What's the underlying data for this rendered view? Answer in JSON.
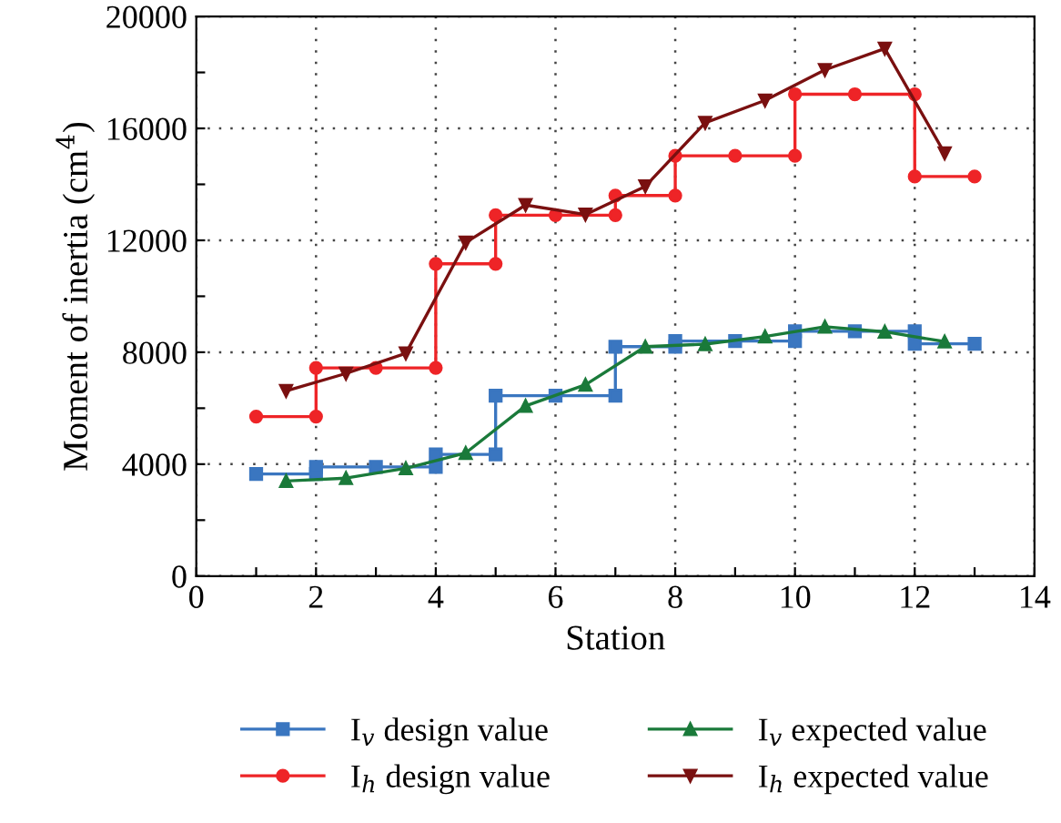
{
  "chart_data": {
    "type": "line",
    "xlabel": "Station",
    "ylabel": "Moment of inertia (cm$^{4}$)",
    "xlim": [
      0,
      14
    ],
    "ylim": [
      0,
      20000
    ],
    "xticks": [
      0,
      {
        "value": 1,
        "label": null
      },
      2,
      {
        "value": 3,
        "label": null
      },
      4,
      {
        "value": 5,
        "label": null
      },
      6,
      {
        "value": 7,
        "label": null
      },
      8,
      {
        "value": 9,
        "label": null
      },
      10,
      {
        "value": 11,
        "label": null
      },
      12,
      {
        "value": 13,
        "label": null
      },
      14
    ],
    "yticks": [
      0,
      {
        "value": 2000,
        "label": null
      },
      4000,
      {
        "value": 6000,
        "label": null
      },
      8000,
      {
        "value": 10000,
        "label": null
      },
      12000,
      {
        "value": 14000,
        "label": null
      },
      16000,
      {
        "value": 18000,
        "label": null
      },
      20000
    ],
    "grid": true,
    "legend": "bottom",
    "line_style": "solid",
    "series": [
      {
        "name": "I$_{v}$ design value",
        "color": "#3a76c0",
        "marker": "square",
        "x": [
          1,
          2,
          2,
          3,
          4,
          4,
          5,
          5,
          6,
          7,
          7,
          8,
          8,
          9,
          10,
          10,
          11,
          12,
          12,
          13
        ],
        "values": [
          3650,
          3650,
          3900,
          3900,
          3900,
          4350,
          4350,
          6450,
          6450,
          6450,
          8200,
          8200,
          8400,
          8400,
          8400,
          8750,
          8750,
          8750,
          8300,
          8300
        ]
      },
      {
        "name": "I$_{h}$ design value",
        "color": "#ee2427",
        "marker": "circle",
        "x": [
          1,
          2,
          2,
          3,
          4,
          4,
          5,
          5,
          6,
          7,
          7,
          8,
          8,
          9,
          10,
          10,
          11,
          12,
          12,
          13
        ],
        "values": [
          5700,
          5700,
          7440,
          7440,
          7440,
          11160,
          11160,
          12900,
          12900,
          12900,
          13600,
          13600,
          15020,
          15020,
          15020,
          17220,
          17220,
          17220,
          14280,
          14280
        ]
      },
      {
        "name": "I$_{v}$ expected value",
        "color": "#1a7a3a",
        "marker": "triangle",
        "x": [
          1.5,
          2.5,
          3.5,
          4.5,
          5.5,
          6.5,
          7.5,
          8.5,
          9.5,
          10.5,
          11.5,
          12.5
        ],
        "values": [
          3400,
          3500,
          3850,
          4400,
          6080,
          6840,
          8200,
          8290,
          8560,
          8910,
          8730,
          8380
        ]
      },
      {
        "name": "I$_{h}$ expected value",
        "color": "#7a1010",
        "marker": "triangle_down",
        "x": [
          1.5,
          2.5,
          3.5,
          4.5,
          5.5,
          6.5,
          7.5,
          8.5,
          9.5,
          10.5,
          11.5,
          12.5
        ],
        "values": [
          6620,
          7240,
          7960,
          11920,
          13260,
          12920,
          13930,
          16200,
          17000,
          18090,
          18850,
          15110
        ]
      }
    ]
  }
}
